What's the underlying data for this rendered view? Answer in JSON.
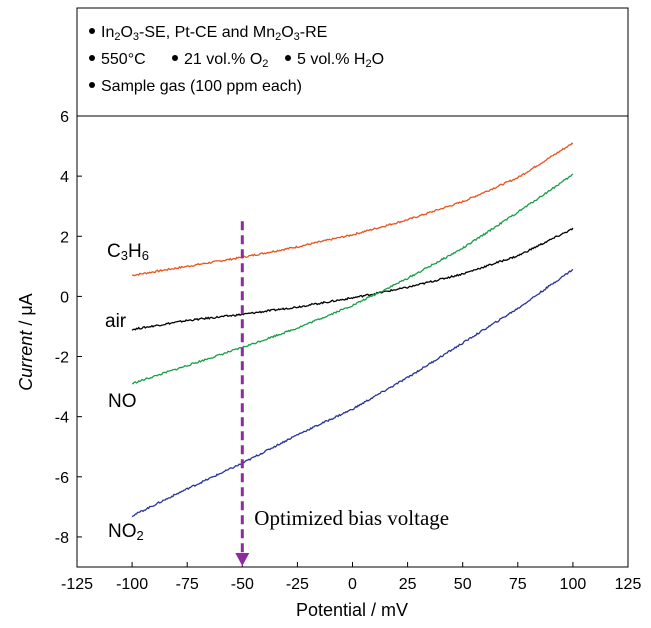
{
  "chart_data": {
    "type": "line",
    "xlabel": "Potential / mV",
    "ylabel_italic": "Current",
    "ylabel_unit": " / μA",
    "xlim": [
      -125,
      125
    ],
    "ylim": [
      -9,
      6
    ],
    "xticks": [
      -125,
      -100,
      -75,
      -50,
      -25,
      0,
      25,
      50,
      75,
      100,
      125
    ],
    "yticks": [
      -8,
      -6,
      -4,
      -2,
      0,
      2,
      4,
      6
    ],
    "grid": false,
    "legend_box": {
      "line1": "In2O3-SE, Pt-CE and Mn2O3-RE",
      "line2a": "550°C",
      "line2b": "21 vol.% O2",
      "line2c": "5 vol.% H2O",
      "line3": "Sample gas (100 ppm each)"
    },
    "series": [
      {
        "name": "C3H6",
        "color": "#e8541e",
        "x": [
          -100,
          -75,
          -50,
          -25,
          0,
          25,
          50,
          75,
          100
        ],
        "y": [
          0.7,
          1.0,
          1.3,
          1.65,
          2.05,
          2.55,
          3.15,
          3.95,
          5.1
        ]
      },
      {
        "name": "air",
        "color": "#000000",
        "x": [
          -100,
          -75,
          -50,
          -25,
          0,
          25,
          50,
          75,
          100
        ],
        "y": [
          -1.1,
          -0.8,
          -0.6,
          -0.35,
          -0.05,
          0.3,
          0.75,
          1.35,
          2.25
        ]
      },
      {
        "name": "NO",
        "color": "#1a9e4a",
        "x": [
          -100,
          -75,
          -50,
          -25,
          0,
          25,
          50,
          75,
          100
        ],
        "y": [
          -2.9,
          -2.3,
          -1.7,
          -1.05,
          -0.3,
          0.6,
          1.6,
          2.8,
          4.05
        ]
      },
      {
        "name": "NO2",
        "color": "#283593",
        "x": [
          -100,
          -75,
          -50,
          -25,
          0,
          25,
          50,
          75,
          100
        ],
        "y": [
          -7.3,
          -6.4,
          -5.55,
          -4.6,
          -3.75,
          -2.7,
          -1.55,
          -0.4,
          0.9
        ]
      }
    ],
    "curve_labels": {
      "C3H6": "C3H6",
      "air": "air",
      "NO": "NO",
      "NO2": "NO2"
    },
    "annotation": {
      "text": "Optimized bias voltage",
      "x": -50,
      "color": "#8e2b9e"
    }
  }
}
